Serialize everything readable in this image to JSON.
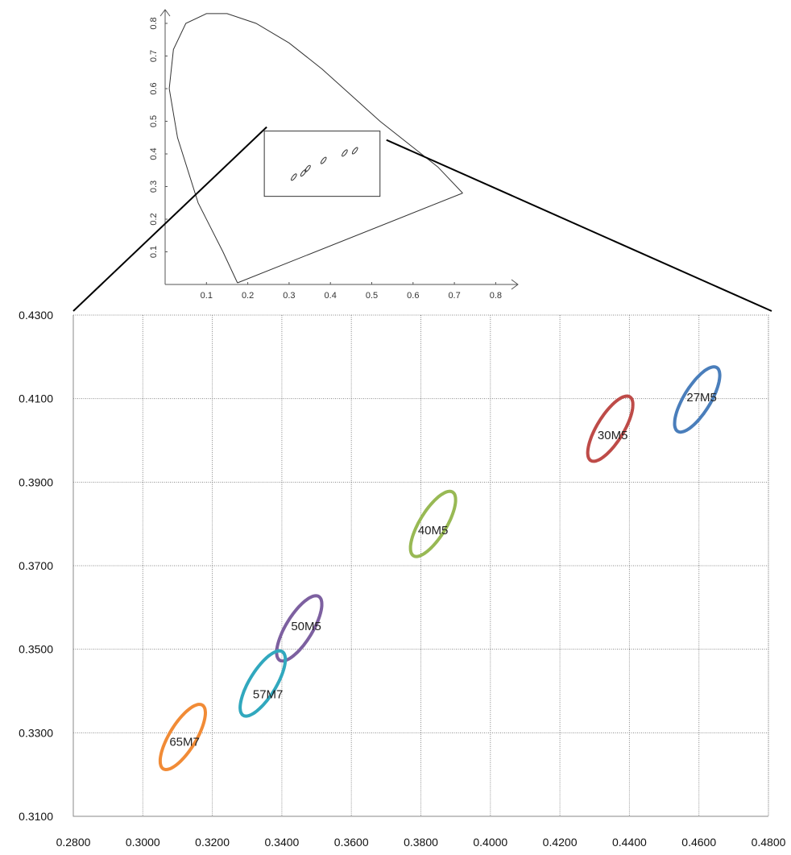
{
  "chart_data": [
    {
      "type": "line",
      "description_role": "inset",
      "x_ticks": [
        "0.1",
        "0.2",
        "0.3",
        "0.4",
        "0.5",
        "0.6",
        "0.7",
        "0.8"
      ],
      "y_ticks": [
        "0.1",
        "0.2",
        "0.3",
        "0.4",
        "0.5",
        "0.6",
        "0.7",
        "0.8"
      ],
      "xlim": [
        0,
        0.8
      ],
      "ylim": [
        0,
        0.85
      ],
      "locus": [
        [
          0.175,
          0.005
        ],
        [
          0.14,
          0.1
        ],
        [
          0.08,
          0.25
        ],
        [
          0.03,
          0.45
        ],
        [
          0.01,
          0.6
        ],
        [
          0.02,
          0.72
        ],
        [
          0.05,
          0.8
        ],
        [
          0.1,
          0.83
        ],
        [
          0.15,
          0.83
        ],
        [
          0.22,
          0.8
        ],
        [
          0.3,
          0.74
        ],
        [
          0.38,
          0.66
        ],
        [
          0.45,
          0.58
        ],
        [
          0.52,
          0.5
        ],
        [
          0.6,
          0.42
        ],
        [
          0.66,
          0.36
        ],
        [
          0.72,
          0.28
        ]
      ],
      "purple_line": [
        [
          0.72,
          0.28
        ],
        [
          0.175,
          0.005
        ]
      ],
      "zoom_box": {
        "x": [
          0.24,
          0.52
        ],
        "y": [
          0.27,
          0.47
        ]
      }
    },
    {
      "type": "scatter",
      "description_role": "main",
      "x_ticks": [
        "0.2800",
        "0.3000",
        "0.3200",
        "0.3400",
        "0.3600",
        "0.3800",
        "0.4000",
        "0.4200",
        "0.4400",
        "0.4600",
        "0.4800"
      ],
      "y_ticks": [
        "0.3100",
        "0.3300",
        "0.3500",
        "0.3700",
        "0.3900",
        "0.4100",
        "0.4300"
      ],
      "xlim": [
        0.28,
        0.48
      ],
      "ylim": [
        0.31,
        0.43
      ],
      "grid": true,
      "series": [
        {
          "name": "27M5",
          "color": "#4a7ebb",
          "center": [
            0.4595,
            0.4098
          ],
          "label_at": [
            0.4608,
            0.4103
          ]
        },
        {
          "name": "30M5",
          "color": "#be4b48",
          "center": [
            0.4345,
            0.4028
          ],
          "label_at": [
            0.4352,
            0.4013
          ]
        },
        {
          "name": "40M5",
          "color": "#98b954",
          "center": [
            0.3835,
            0.38
          ],
          "label_at": [
            0.3835,
            0.3785
          ]
        },
        {
          "name": "50M5",
          "color": "#7d60a0",
          "center": [
            0.345,
            0.355
          ],
          "label_at": [
            0.347,
            0.3555
          ]
        },
        {
          "name": "57M7",
          "color": "#31a8be",
          "center": [
            0.3345,
            0.3418
          ],
          "label_at": [
            0.336,
            0.3392
          ]
        },
        {
          "name": "65M7",
          "color": "#f18b36",
          "center": [
            0.3115,
            0.329
          ],
          "label_at": [
            0.312,
            0.3278
          ]
        }
      ],
      "ellipse_semi_axes": [
        0.0095,
        0.0036
      ],
      "ellipse_angle_deg": 52
    }
  ]
}
